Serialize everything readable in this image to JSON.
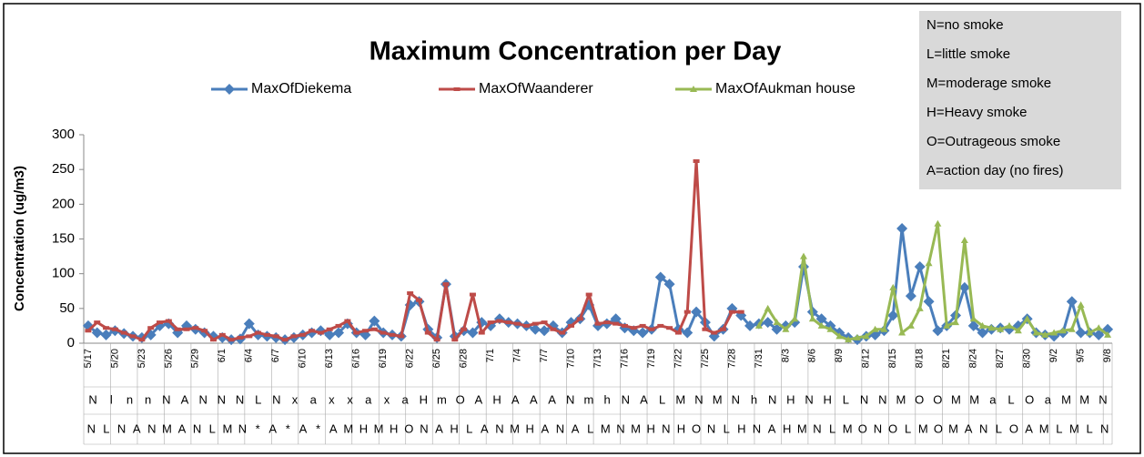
{
  "chart_data": {
    "type": "line",
    "title": "Maximum Concentration per Day",
    "y_label": "Concentration (ug/m3)",
    "notes": [
      "N=no smoke",
      "L=little smoke",
      "M=moderage smoke",
      "H=Heavy smoke",
      "O=Outrageous smoke",
      "A=action day (no fires)"
    ],
    "categories": [
      "5/17",
      null,
      null,
      "5/20",
      null,
      null,
      "5/23",
      null,
      null,
      "5/26",
      null,
      null,
      "5/29",
      null,
      null,
      "6/1",
      null,
      null,
      "6/4",
      null,
      null,
      "6/7",
      null,
      null,
      "6/10",
      null,
      null,
      "6/13",
      null,
      null,
      "6/16",
      null,
      null,
      "6/19",
      null,
      null,
      "6/22",
      null,
      null,
      "6/25",
      null,
      null,
      "6/28",
      null,
      null,
      "7/1",
      null,
      null,
      "7/4",
      null,
      null,
      "7/7",
      null,
      null,
      "7/10",
      null,
      null,
      "7/13",
      null,
      null,
      "7/16",
      null,
      null,
      "7/19",
      null,
      null,
      "7/22",
      null,
      null,
      "7/25",
      null,
      null,
      "7/28",
      null,
      null,
      "7/31",
      null,
      null,
      "8/3",
      null,
      null,
      "8/6",
      null,
      null,
      "8/9",
      null,
      null,
      "8/12",
      null,
      null,
      "8/15",
      null,
      null,
      "8/18",
      null,
      null,
      "8/21",
      null,
      null,
      "8/24",
      null,
      null,
      "8/27",
      null,
      null,
      "8/30",
      null,
      null,
      "9/2",
      null,
      null,
      "9/5",
      null,
      null,
      "9/8"
    ],
    "smoke_row_1": [
      "N",
      "l",
      "n",
      "n",
      "N",
      "A",
      "N",
      "N",
      "N",
      "L",
      "N",
      "x",
      "a",
      "x",
      "x",
      "a",
      "x",
      "a",
      "H",
      "m",
      "O",
      "A",
      "H",
      "A",
      "A",
      "A",
      "N",
      "m",
      "h",
      "N",
      "A",
      "L",
      "M",
      "N",
      "M",
      "N",
      "h",
      "N",
      "H",
      "N",
      "H",
      "L",
      "N",
      "N",
      "M",
      "O",
      "O",
      "M",
      "M",
      "a",
      "L",
      "O",
      "a",
      "M",
      "M",
      "N"
    ],
    "smoke_row_2": [
      "N",
      "L",
      "N",
      "A",
      "N",
      "M",
      "A",
      "N",
      "L",
      "M",
      "N",
      "*",
      "A",
      "*",
      "A",
      "*",
      "A",
      "M",
      "H",
      "M",
      "H",
      "O",
      "N",
      "A",
      "H",
      "L",
      "A",
      "N",
      "M",
      "H",
      "A",
      "N",
      "A",
      "L",
      "M",
      "N",
      "M",
      "H",
      "N",
      "H",
      "O",
      "N",
      "L",
      "H",
      "N",
      "A",
      "H",
      "M",
      "N",
      "L",
      "M",
      "O",
      "N",
      "O",
      "L",
      "M",
      "O",
      "M",
      "A",
      "N",
      "L",
      "O",
      "A",
      "M",
      "L",
      "M",
      "L",
      "N"
    ],
    "ylim": [
      0,
      300
    ],
    "yticks": [
      0,
      50,
      100,
      150,
      200,
      250,
      300
    ],
    "series": [
      {
        "name": "MaxOfDiekema",
        "color": "#4a7ebb",
        "marker": "diamond",
        "values": [
          25,
          15,
          12,
          18,
          14,
          10,
          8,
          12,
          25,
          28,
          15,
          25,
          20,
          15,
          10,
          8,
          5,
          6,
          28,
          12,
          10,
          8,
          5,
          8,
          12,
          15,
          18,
          12,
          15,
          28,
          15,
          12,
          32,
          15,
          12,
          10,
          55,
          60,
          20,
          8,
          85,
          10,
          18,
          15,
          30,
          25,
          35,
          30,
          28,
          25,
          20,
          18,
          25,
          15,
          30,
          35,
          55,
          25,
          28,
          35,
          22,
          18,
          15,
          20,
          95,
          85,
          20,
          15,
          45,
          30,
          10,
          20,
          50,
          40,
          25,
          28,
          30,
          20,
          25,
          30,
          110,
          45,
          35,
          25,
          15,
          8,
          5,
          10,
          12,
          18,
          40,
          165,
          68,
          110,
          60,
          18,
          25,
          40,
          80,
          25,
          15,
          20,
          22,
          20,
          25,
          35,
          15,
          12,
          10,
          15,
          60,
          15,
          15,
          12,
          20
        ]
      },
      {
        "name": "MaxOfWaanderer",
        "color": "#be4b48",
        "marker": "square",
        "values": [
          18,
          30,
          22,
          20,
          15,
          10,
          5,
          22,
          30,
          32,
          20,
          20,
          22,
          18,
          5,
          12,
          5,
          8,
          10,
          15,
          12,
          10,
          5,
          10,
          12,
          18,
          15,
          20,
          25,
          32,
          15,
          18,
          20,
          15,
          12,
          10,
          72,
          62,
          15,
          5,
          85,
          5,
          20,
          70,
          15,
          30,
          32,
          30,
          28,
          25,
          28,
          30,
          20,
          15,
          25,
          35,
          70,
          28,
          30,
          28,
          25,
          22,
          25,
          20,
          25,
          22,
          15,
          45,
          262,
          20,
          15,
          20,
          45,
          45,
          null,
          null,
          null,
          null,
          null,
          null,
          null,
          null,
          null,
          null,
          null,
          null,
          null,
          null,
          null,
          null,
          null,
          null,
          null,
          null,
          null,
          null,
          null,
          null,
          null,
          null,
          null,
          null,
          null,
          null,
          null,
          null,
          null,
          null,
          null,
          null,
          null,
          null,
          null,
          null,
          null
        ]
      },
      {
        "name": "MaxOfAukman house",
        "color": "#98b954",
        "marker": "triangle",
        "values": [
          null,
          null,
          null,
          null,
          null,
          null,
          null,
          null,
          null,
          null,
          null,
          null,
          null,
          null,
          null,
          null,
          null,
          null,
          null,
          null,
          null,
          null,
          null,
          null,
          null,
          null,
          null,
          null,
          null,
          null,
          null,
          null,
          null,
          null,
          null,
          null,
          null,
          null,
          null,
          null,
          null,
          null,
          null,
          null,
          null,
          null,
          null,
          null,
          null,
          null,
          null,
          null,
          null,
          null,
          null,
          null,
          null,
          null,
          null,
          null,
          null,
          null,
          null,
          null,
          null,
          null,
          null,
          null,
          null,
          null,
          null,
          null,
          null,
          null,
          null,
          25,
          50,
          30,
          20,
          35,
          125,
          35,
          25,
          20,
          10,
          5,
          8,
          10,
          20,
          20,
          80,
          15,
          25,
          50,
          115,
          172,
          25,
          30,
          148,
          35,
          25,
          22,
          20,
          25,
          18,
          35,
          15,
          12,
          15,
          18,
          20,
          55,
          15,
          22,
          12
        ]
      }
    ]
  }
}
